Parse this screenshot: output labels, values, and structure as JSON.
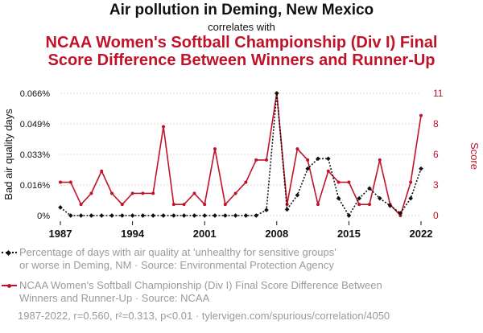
{
  "header": {
    "title_line1": "Air pollution in Deming, New Mexico",
    "connector": "correlates with",
    "title_line2a": "NCAA Women's Softball Championship (Div I) Final",
    "title_line2b": "Score Difference Between Winners and Runner-Up"
  },
  "legend": {
    "series1_line1": "Percentage of days with air quality at 'unhealthy for sensitive groups'",
    "series1_line2": "or worse in Deming, NM · Source: Environmental Protection Agency",
    "series2_line1": "NCAA Women's Softball Championship (Div I) Final Score Difference Between",
    "series2_line2": "Winners and Runner-Up · Source: NCAA"
  },
  "footer": {
    "stats": "1987-2022, r=0.560, r²=0.313, p<0.01 · tylervigen.com/spurious/correlation/4050"
  },
  "colors": {
    "series1": "#111111",
    "series2": "#c0132a"
  },
  "chart_data": {
    "type": "line",
    "x": [
      1987,
      1988,
      1989,
      1990,
      1991,
      1992,
      1993,
      1994,
      1995,
      1996,
      1997,
      1998,
      1999,
      2000,
      2001,
      2002,
      2003,
      2004,
      2005,
      2006,
      2007,
      2008,
      2009,
      2010,
      2011,
      2012,
      2013,
      2014,
      2015,
      2016,
      2017,
      2018,
      2019,
      2020,
      2021,
      2022
    ],
    "xticks": [
      "1987",
      "1994",
      "2001",
      "2008",
      "2015",
      "2022"
    ],
    "xlim": [
      1987,
      2022
    ],
    "ylabel_left": "Bad air quality days",
    "ylabel_right": "Score",
    "ylim_left": [
      0,
      0.066
    ],
    "yticks_left": [
      "0%",
      "0.016%",
      "0.033%",
      "0.049%",
      "0.066%"
    ],
    "ylim_right": [
      0,
      11
    ],
    "yticks_right": [
      "0",
      "3",
      "6",
      "8",
      "11"
    ],
    "series": [
      {
        "name": "Percentage of days with air quality at 'unhealthy for sensitive groups' or worse in Deming, NM",
        "axis": "left",
        "values": [
          0.0044,
          0,
          0,
          0,
          0,
          0,
          0,
          0,
          0,
          0,
          0,
          0,
          0,
          0,
          0,
          0,
          0,
          0,
          0,
          0,
          0.003,
          0.066,
          0.0033,
          0.011,
          0.0253,
          0.0307,
          0.0307,
          0.0093,
          0,
          0.0093,
          0.0147,
          0.0093,
          0.0053,
          0.0013,
          0.0093,
          0.0253
        ]
      },
      {
        "name": "NCAA Women's Softball Championship (Div I) Final Score Difference Between Winners and Runner-Up",
        "axis": "right",
        "values": [
          3,
          3,
          1,
          2,
          4,
          2,
          1,
          2,
          2,
          2,
          8,
          1,
          1,
          2,
          1,
          6,
          1,
          2,
          3,
          5,
          5,
          11,
          1,
          6,
          5,
          1,
          4,
          3,
          3,
          1,
          1,
          5,
          1,
          0,
          3,
          9
        ]
      }
    ]
  }
}
